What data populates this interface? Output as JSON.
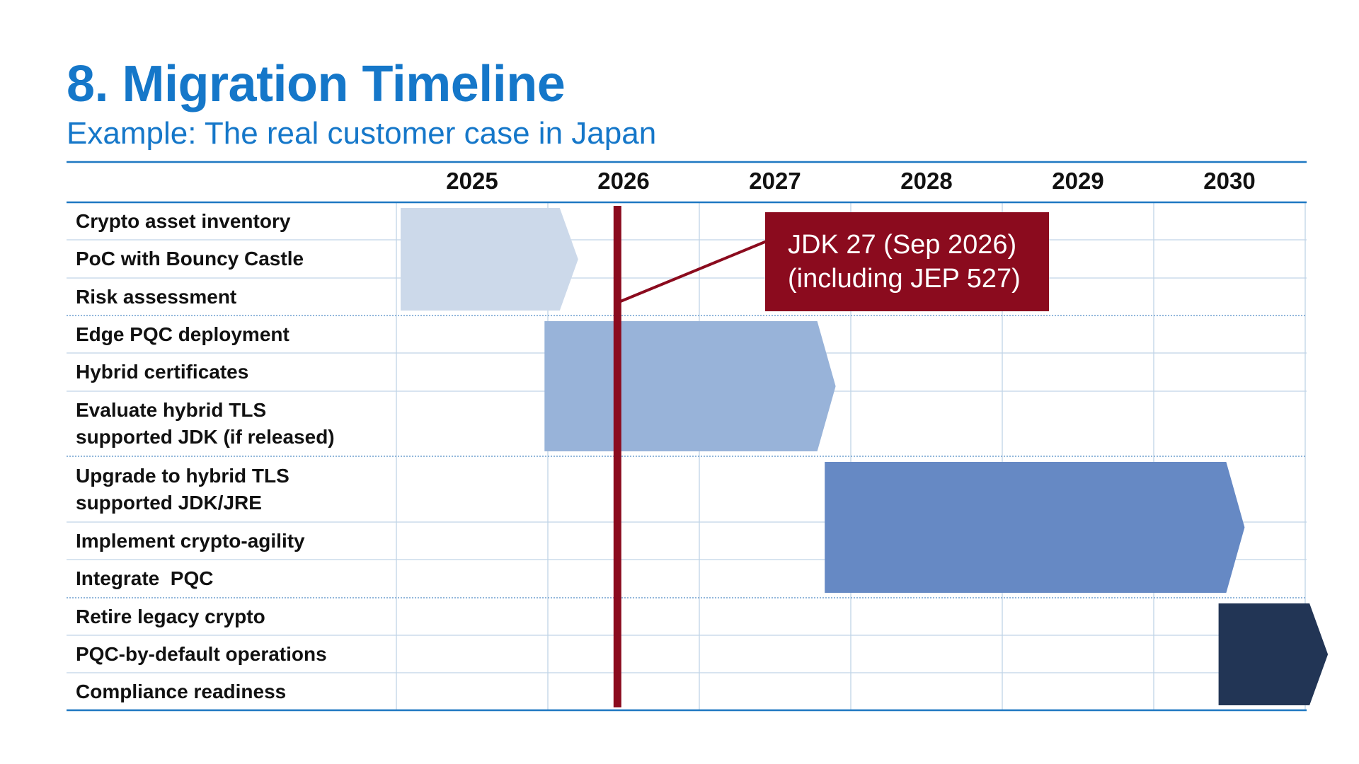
{
  "page": {
    "title": "8. Migration Timeline",
    "subtitle": "Example: The real customer case in Japan"
  },
  "chart_data": {
    "type": "gantt",
    "years": [
      "2025",
      "2026",
      "2027",
      "2028",
      "2029",
      "2030"
    ],
    "x_range": [
      2025.0,
      2031.0
    ],
    "tasks": [
      "Crypto asset inventory",
      "PoC with Bouncy Castle",
      "Risk assessment",
      "Edge PQC deployment",
      "Hybrid certificates",
      "Evaluate hybrid TLS\nsupported JDK (if released)",
      "Upgrade to hybrid TLS\nsupported JDK/JRE",
      "Implement crypto-agility",
      "Integrate  PQC",
      "Retire legacy crypto",
      "PQC-by-default operations",
      "Compliance readiness"
    ],
    "phases": [
      {
        "tasks": [
          0,
          1,
          2
        ],
        "start": 2025.0,
        "end": 2026.2,
        "color": "#ccd9ea"
      },
      {
        "tasks": [
          3,
          4,
          5
        ],
        "start": 2025.95,
        "end": 2027.9,
        "color": "#98b3d9"
      },
      {
        "tasks": [
          6,
          7,
          8
        ],
        "start": 2027.8,
        "end": 2030.6,
        "color": "#6689c4"
      },
      {
        "tasks": [
          9,
          10,
          11
        ],
        "start": 2030.4,
        "end": 2031.15,
        "color": "#223555"
      }
    ],
    "marker": {
      "date": 2026.45,
      "label_lines": [
        "JDK 27 (Sep 2026)",
        "(including JEP 527)"
      ],
      "color": "#8b0b1e"
    },
    "colors": {
      "frame": "#1e78c2",
      "grid": "#c0d4e6",
      "title": "#1577c9"
    }
  }
}
